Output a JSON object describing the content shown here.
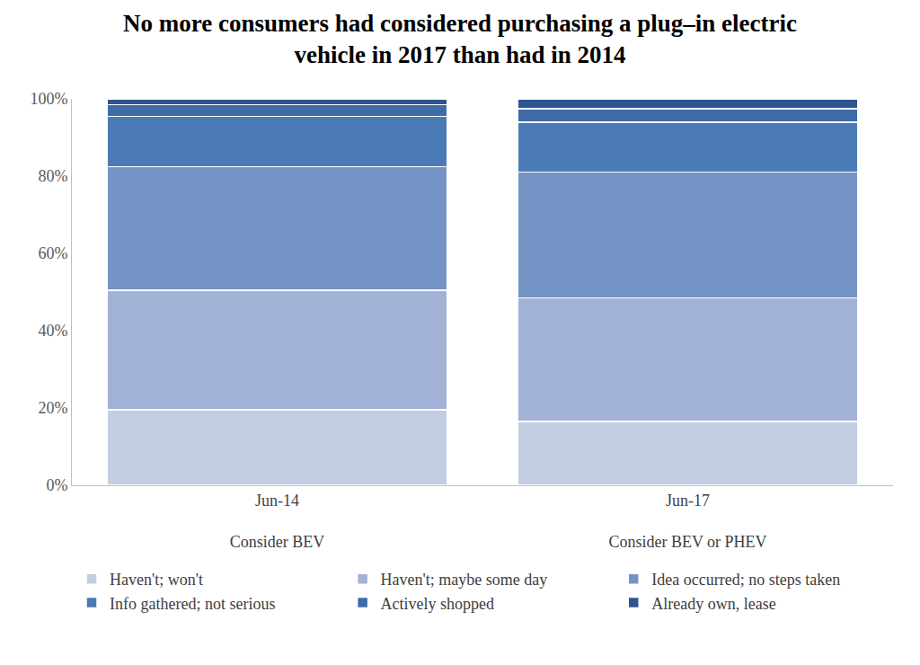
{
  "chart_data": {
    "type": "bar",
    "title": "No more consumers had considered purchasing a plug–in electric vehicle in 2017 than had in 2014",
    "categories": [
      "Jun-14",
      "Jun-17"
    ],
    "groups": [
      "Consider BEV",
      "Consider BEV or PHEV"
    ],
    "stacked": true,
    "grid": false,
    "legend": "bottom",
    "ylim": [
      0,
      100
    ],
    "yticks": [
      {
        "value": 0,
        "label": "0%"
      },
      {
        "value": 20,
        "label": "20%"
      },
      {
        "value": 40,
        "label": "40%"
      },
      {
        "value": 60,
        "label": "60%"
      },
      {
        "value": 80,
        "label": "80%"
      },
      {
        "value": 100,
        "label": "100%"
      }
    ],
    "series": [
      {
        "name": "Haven't; won't",
        "color": "#c3cde1",
        "values": [
          19.5,
          16.5
        ]
      },
      {
        "name": "Haven't; maybe some day",
        "color": "#a1b2d6",
        "values": [
          31,
          32
        ]
      },
      {
        "name": "Idea occurred; no steps taken",
        "color": "#7594c6",
        "values": [
          32,
          32.5
        ]
      },
      {
        "name": "Info gathered; not serious",
        "color": "#4a7bb7",
        "values": [
          13,
          13
        ]
      },
      {
        "name": "Actively shopped",
        "color": "#3f6ba6",
        "values": [
          3,
          3.5
        ]
      },
      {
        "name": "Already own, lease",
        "color": "#2f5591",
        "values": [
          1.5,
          2.5
        ]
      }
    ]
  }
}
